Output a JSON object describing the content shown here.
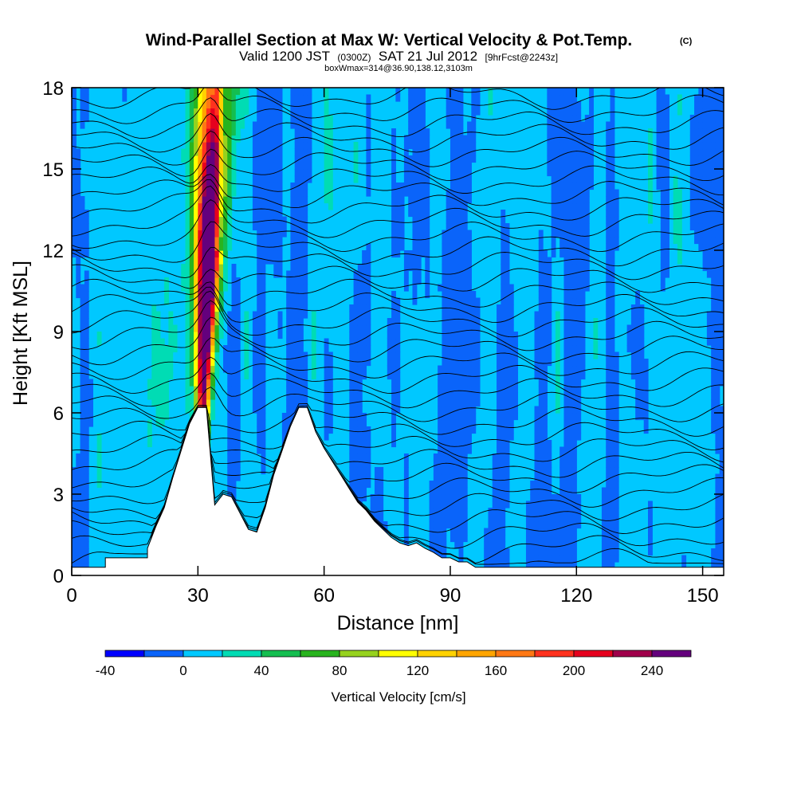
{
  "title": {
    "main": "Wind-Parallel Section at Max W: Vertical Velocity & Pot.Temp.",
    "copyright": "(C)",
    "valid_prefix": "Valid 1200 JST",
    "valid_utc": "(0300Z)",
    "valid_date": "SAT 21 Jul 2012",
    "forecast": "[9hrFcst@2243z]",
    "box_info": "boxWmax=314@36.90,138.12,3103m"
  },
  "chart_data": {
    "type": "heatmap",
    "xlabel": "Distance [nm]",
    "ylabel": "Height [Kft MSL]",
    "xlim": [
      0,
      155
    ],
    "ylim": [
      0,
      18
    ],
    "xticks": [
      0,
      30,
      60,
      90,
      120,
      150
    ],
    "xtick_labels": [
      "0",
      "30",
      "60",
      "90",
      "120",
      "150"
    ],
    "yticks": [
      0,
      3,
      6,
      9,
      12,
      15,
      18
    ],
    "ytick_labels": [
      "0",
      "3",
      "6",
      "9",
      "12",
      "15",
      "18"
    ],
    "colorbar": {
      "label": "Vertical Velocity [cm/s]",
      "levels": [
        -40,
        -20,
        0,
        20,
        40,
        60,
        80,
        100,
        120,
        140,
        160,
        180,
        200,
        220,
        240,
        260
      ],
      "tick_values": [
        -40,
        0,
        40,
        80,
        120,
        160,
        200,
        240
      ],
      "tick_labels": [
        "-40",
        "0",
        "40",
        "80",
        "120",
        "160",
        "200",
        "240"
      ],
      "colors": [
        "#0000ff",
        "#0a64fa",
        "#00c8ff",
        "#00dcb4",
        "#14be50",
        "#28b41e",
        "#96d21e",
        "#ffff00",
        "#ffd200",
        "#ffa500",
        "#ff7814",
        "#ff321e",
        "#e6001e",
        "#a0004b",
        "#64007d"
      ]
    },
    "terrain_profile": {
      "x": [
        0,
        8,
        8,
        18,
        18,
        20,
        22,
        24,
        26,
        28,
        30,
        32,
        34,
        36,
        38,
        40,
        42,
        44,
        46,
        48,
        50,
        52,
        54,
        56,
        58,
        60,
        62,
        64,
        66,
        68,
        70,
        72,
        74,
        76,
        78,
        80,
        82,
        84,
        86,
        88,
        90,
        92,
        94,
        96,
        98,
        100,
        155
      ],
      "height": [
        0.3,
        0.3,
        0.65,
        0.65,
        1.0,
        1.8,
        2.5,
        3.6,
        4.6,
        5.6,
        6.2,
        6.2,
        2.6,
        3.0,
        2.9,
        2.3,
        1.7,
        1.6,
        2.5,
        3.7,
        4.6,
        5.5,
        6.2,
        6.2,
        5.3,
        4.7,
        4.2,
        3.7,
        3.2,
        2.7,
        2.4,
        2.0,
        1.7,
        1.4,
        1.2,
        1.1,
        1.2,
        1.0,
        0.85,
        0.65,
        0.65,
        0.5,
        0.5,
        0.3,
        0.3,
        0.3,
        0.3
      ]
    },
    "max_updraft_cm_s": 314,
    "max_updraft_x_nm": 32,
    "theta_contours_count": 34
  }
}
